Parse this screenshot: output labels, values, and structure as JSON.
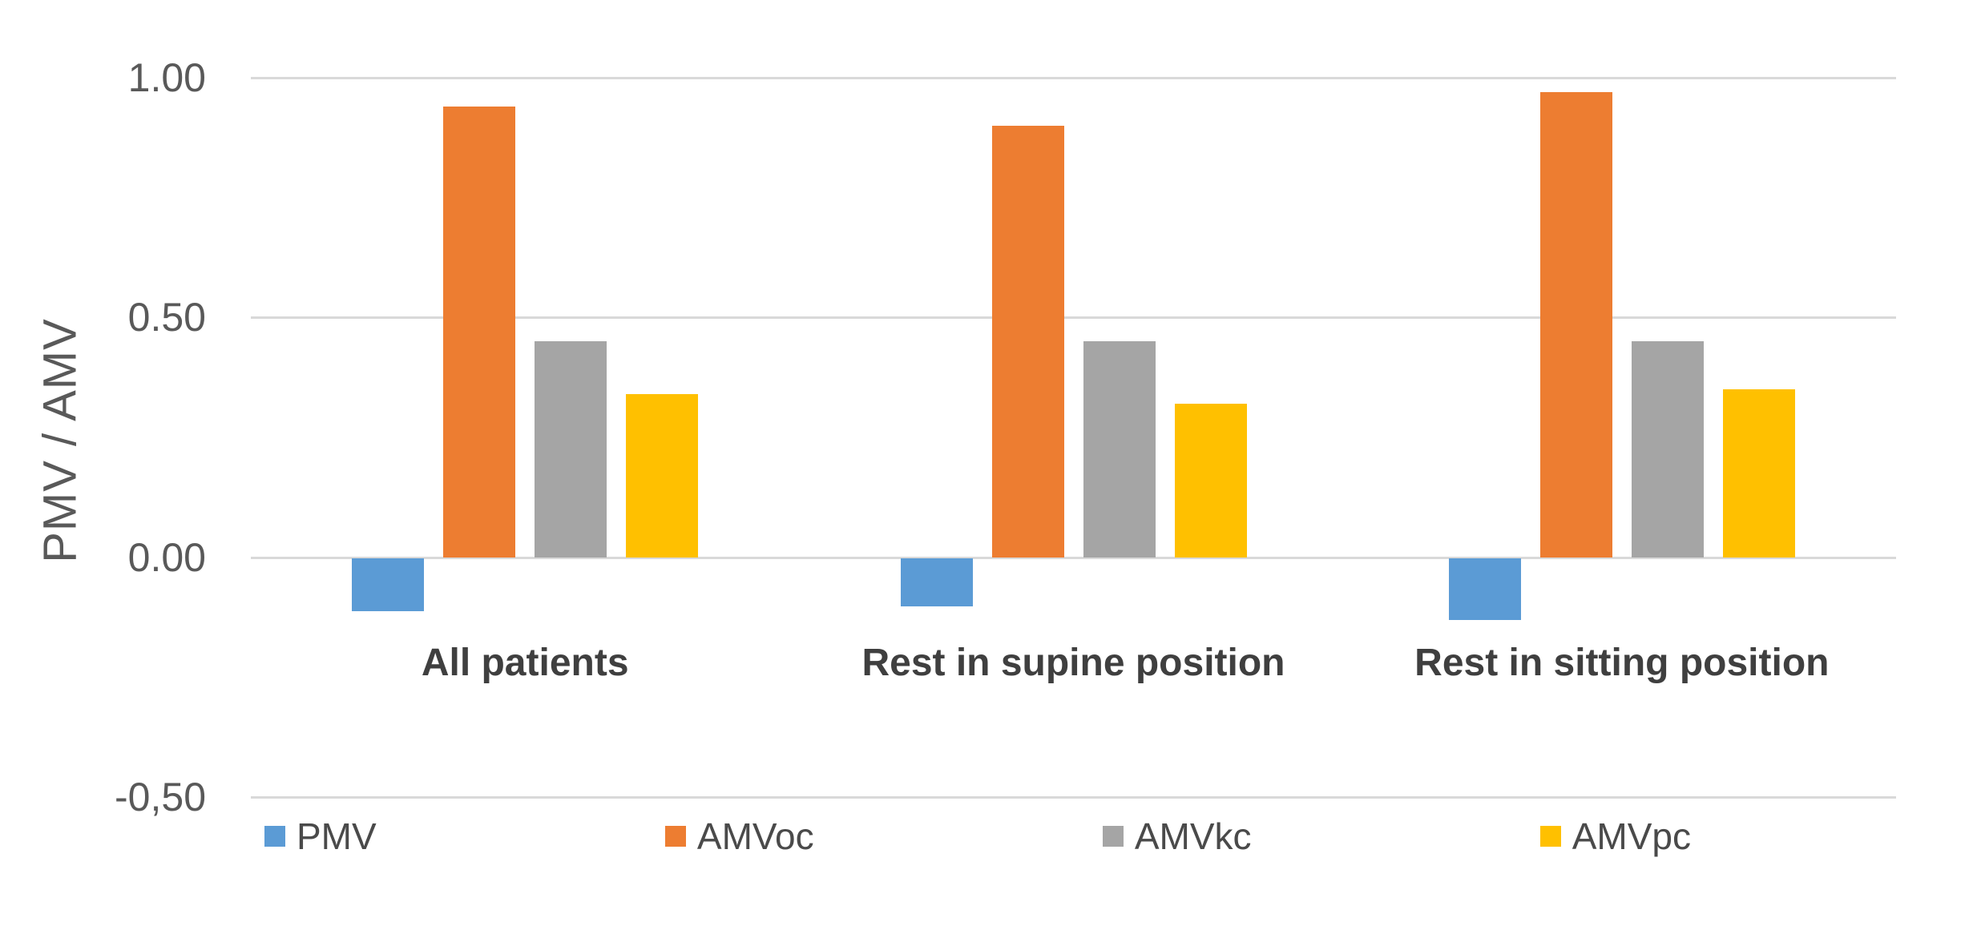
{
  "chart_data": {
    "type": "bar",
    "title": "",
    "xlabel": "",
    "ylabel": "PMV / AMV",
    "categories": [
      "All patients",
      "Rest in supine position",
      "Rest in sitting position"
    ],
    "series": [
      {
        "name": "PMV",
        "color": "#5B9BD5",
        "values": [
          -0.11,
          -0.1,
          -0.13
        ]
      },
      {
        "name": "AMVoc",
        "color": "#ED7D31",
        "values": [
          0.94,
          0.9,
          0.97
        ]
      },
      {
        "name": "AMVkc",
        "color": "#A5A5A5",
        "values": [
          0.45,
          0.45,
          0.45
        ]
      },
      {
        "name": "AMVpc",
        "color": "#FFC000",
        "values": [
          0.34,
          0.32,
          0.35
        ]
      }
    ],
    "y_axis": {
      "range": [
        -0.5,
        1.0
      ],
      "ticks": [
        {
          "value": 1.0,
          "label": "1.00"
        },
        {
          "value": 0.5,
          "label": "0.50"
        },
        {
          "value": 0.0,
          "label": "0.00"
        },
        {
          "value": -0.5,
          "label": "-0,50"
        }
      ],
      "grid": true
    },
    "legend_position": "bottom",
    "colors": {
      "gridline": "#d9d9d9",
      "tick_text": "#595959",
      "category_text": "#3f3f3f",
      "legend_text": "#4a4a4a",
      "background": "#ffffff"
    }
  }
}
